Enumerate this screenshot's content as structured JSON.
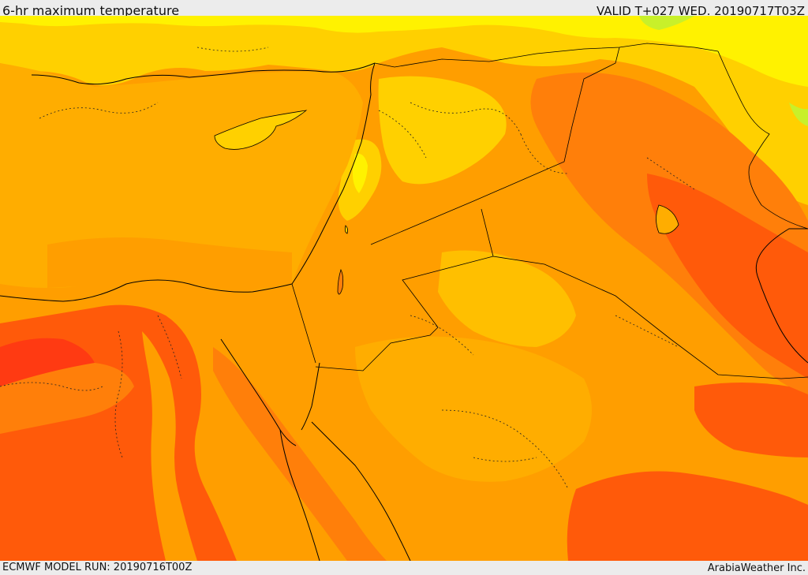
{
  "header": {
    "title": "6-hr maximum temperature",
    "valid": "VALID T+027 WED. 20190717T03Z"
  },
  "footer": {
    "model_run": "ECMWF MODEL RUN: 20190716T00Z",
    "credit": "ArabiaWeather Inc."
  },
  "map": {
    "field": "6-hr maximum temperature",
    "palette": [
      "#ff3a12",
      "#ff5a0a",
      "#ff7f0a",
      "#ffa500",
      "#ffbf00",
      "#ffd800",
      "#fff200",
      "#c8f02a"
    ],
    "border_color": "#1a1a1a",
    "coast_color": "#000000"
  }
}
